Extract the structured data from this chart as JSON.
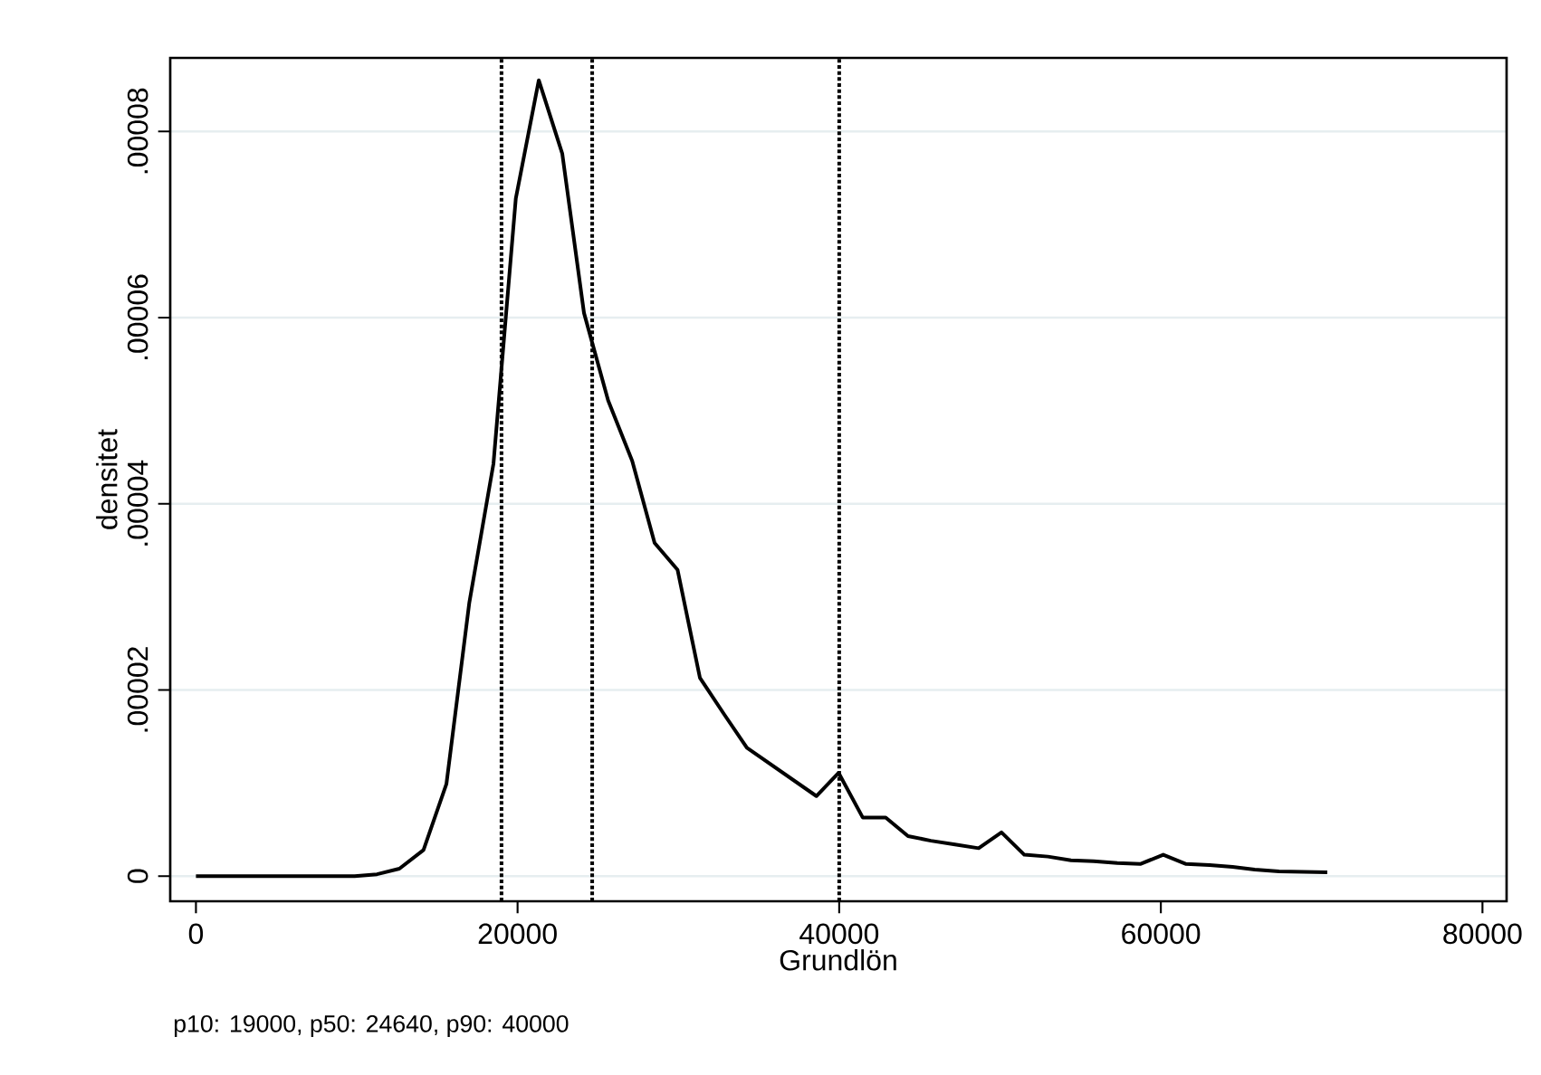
{
  "chart_data": {
    "type": "line",
    "xlabel": "Grundlön",
    "ylabel": "densitet",
    "annotations": [
      "p10: 19000, p50: 24640, p90: 40000"
    ],
    "x": [
      0,
      1130,
      2630,
      4130,
      5520,
      6950,
      8370,
      9870,
      11260,
      12650,
      14150,
      15575,
      17000,
      18500,
      19890,
      21320,
      22780,
      24130,
      25630,
      27130,
      28520,
      29950,
      31340,
      32840,
      34260,
      38580,
      39960,
      41460,
      42890,
      44280,
      45700,
      47200,
      48670,
      50090,
      51510,
      52980,
      54410,
      55830,
      57290,
      58720,
      60150,
      61570,
      63030,
      64460,
      65840,
      67350,
      70350
    ],
    "series": [
      {
        "color": "#000000",
        "values": [
          0,
          0,
          0,
          0,
          0,
          0,
          0,
          0,
          2e-07,
          8e-07,
          2.8e-06,
          9.9e-06,
          2.94e-05,
          4.43e-05,
          7.28e-05,
          8.55e-05,
          7.76e-05,
          6.05e-05,
          5.11e-05,
          4.46e-05,
          3.58e-05,
          3.29e-05,
          2.13e-05,
          1.74e-05,
          1.38e-05,
          8.6e-06,
          1.11e-05,
          6.3e-06,
          6.3e-06,
          4.3e-06,
          3.8e-06,
          3.4e-06,
          3e-06,
          4.7e-06,
          2.3e-06,
          2.1e-06,
          1.7e-06,
          1.6e-06,
          1.4e-06,
          1.3e-06,
          2.3e-06,
          1.3e-06,
          1.2e-06,
          1e-06,
          7e-07,
          5e-07,
          4e-07
        ]
      }
    ],
    "xlim": [
      -1600,
      81500
    ],
    "ylim": [
      -2.7e-06,
      8.79e-05
    ],
    "xticks": [
      0,
      20000,
      40000,
      60000,
      80000
    ],
    "yticks": [
      0,
      {
        "value": 2e-05,
        "label": ".00002"
      },
      {
        "value": 4e-05,
        "label": ".00004"
      },
      {
        "value": 6e-05,
        "label": ".00006"
      },
      {
        "value": 8e-05,
        "label": ".00008"
      }
    ],
    "grid": "y",
    "marker": "none",
    "line_style": "solid",
    "ref_lines": [
      {
        "axis": "x",
        "value": 19000,
        "color": "#000000",
        "line_style": "dotted"
      },
      {
        "axis": "x",
        "value": 24640,
        "color": "#000000",
        "line_style": "dotted"
      },
      {
        "axis": "x",
        "value": 40000,
        "color": "#000000",
        "line_style": "dotted"
      }
    ]
  }
}
